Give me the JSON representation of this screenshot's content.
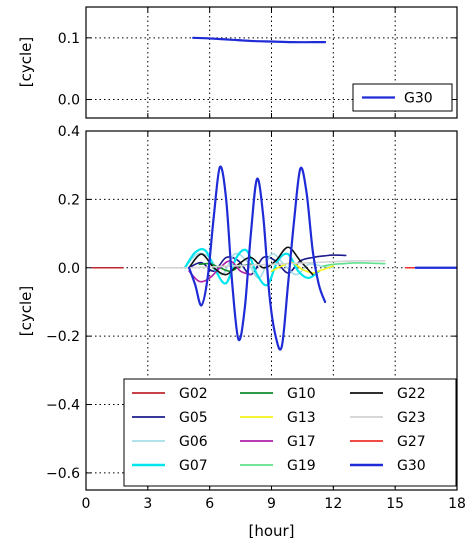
{
  "chart_data": [
    {
      "type": "line",
      "panel": "top",
      "ylabel": "[cycle]",
      "xlim": [
        0,
        18
      ],
      "ylim": [
        -0.03,
        0.15
      ],
      "yticks": [
        0.0,
        0.1
      ],
      "ytick_labels": [
        "0.0",
        "0.1"
      ],
      "grid": true,
      "legend_position": "bottom-right",
      "series": [
        {
          "name": "G30",
          "color": "#1f2bd6",
          "x": [
            5.2,
            6.0,
            7.0,
            8.0,
            9.0,
            10.0,
            11.0,
            11.6
          ],
          "y": [
            0.1,
            0.099,
            0.097,
            0.095,
            0.094,
            0.093,
            0.093,
            0.093
          ]
        }
      ]
    },
    {
      "type": "line",
      "panel": "bottom",
      "xlabel": "[hour]",
      "ylabel": "[cycle]",
      "xlim": [
        0,
        18
      ],
      "ylim": [
        -0.65,
        0.4
      ],
      "xticks": [
        0,
        3,
        6,
        9,
        12,
        15,
        18
      ],
      "xtick_labels": [
        "0",
        "3",
        "6",
        "9",
        "12",
        "15",
        "18"
      ],
      "yticks": [
        0.4,
        0.2,
        0.0,
        -0.2,
        -0.4,
        -0.6
      ],
      "ytick_labels": [
        "0.4",
        "0.2",
        "0.0",
        "−0.2",
        "−0.4",
        "−0.6"
      ],
      "grid": true,
      "legend_position": "lower-center",
      "legend_columns": 3,
      "series": [
        {
          "name": "G02",
          "color": "#c0282d",
          "x": [
            0.3,
            0.8,
            1.3,
            1.8
          ],
          "y": [
            0,
            0,
            0,
            0
          ]
        },
        {
          "name": "G05",
          "color": "#1c1c8c",
          "x": [
            5.0,
            5.6,
            6.2,
            6.8,
            7.4,
            8.0,
            8.6,
            9.2,
            9.8,
            10.4,
            11.0,
            11.6,
            12.0,
            12.6
          ],
          "y": [
            0.0,
            0.015,
            -0.01,
            0.03,
            0.02,
            -0.02,
            0.03,
            0.02,
            -0.015,
            0.02,
            0.03,
            0.035,
            0.037,
            0.036
          ]
        },
        {
          "name": "G06",
          "color": "#a8dde8",
          "x": [
            4.8,
            5.4,
            6.0,
            6.6,
            7.2,
            7.8,
            8.4,
            9.0,
            9.6,
            10.2,
            10.8,
            11.4,
            12.0
          ],
          "y": [
            0.0,
            0.04,
            0.03,
            -0.02,
            0.04,
            0.02,
            -0.03,
            0.04,
            0.01,
            -0.02,
            0.01,
            0.005,
            0.0
          ]
        },
        {
          "name": "G07",
          "color": "#00e5ee",
          "x": [
            4.8,
            5.3,
            5.8,
            6.3,
            6.8,
            7.3,
            7.8,
            8.3,
            8.8,
            9.3,
            9.8,
            10.3,
            10.8,
            11.3
          ],
          "y": [
            0.0,
            0.045,
            0.05,
            -0.01,
            -0.045,
            0.03,
            0.05,
            -0.02,
            -0.05,
            0.02,
            0.04,
            -0.01,
            -0.03,
            -0.01
          ]
        },
        {
          "name": "G10",
          "color": "#118c2e",
          "x": [
            5.5,
            6.0,
            6.5,
            7.0,
            7.5,
            8.0
          ],
          "y": [
            0.01,
            0.012,
            0.0,
            -0.01,
            0.005,
            0.01
          ]
        },
        {
          "name": "G13",
          "color": "#f2f215",
          "x": [
            9.0,
            9.5,
            10.0,
            10.5,
            11.0,
            11.5,
            12.0
          ],
          "y": [
            -0.01,
            0.005,
            0.015,
            -0.005,
            -0.015,
            -0.005,
            0.005
          ]
        },
        {
          "name": "G17",
          "color": "#b020a8",
          "x": [
            5.0,
            5.5,
            6.0,
            6.5,
            7.0,
            7.5,
            8.0
          ],
          "y": [
            -0.01,
            -0.04,
            -0.03,
            0.0,
            0.02,
            -0.01,
            -0.02
          ]
        },
        {
          "name": "G19",
          "color": "#60e08c",
          "x": [
            11.5,
            12.0,
            12.5,
            13.0,
            13.5,
            14.0,
            14.5
          ],
          "y": [
            0.005,
            0.01,
            0.012,
            0.014,
            0.014,
            0.013,
            0.012
          ]
        },
        {
          "name": "G22",
          "color": "#111111",
          "x": [
            5.0,
            5.6,
            6.2,
            6.8,
            7.4,
            8.0,
            8.6,
            9.2,
            9.8,
            10.4,
            11.0
          ],
          "y": [
            0.0,
            0.04,
            0.0,
            -0.02,
            0.01,
            0.03,
            0.0,
            0.02,
            0.06,
            0.02,
            -0.02
          ]
        },
        {
          "name": "G23",
          "color": "#d3d3d3",
          "x": [
            3.5,
            5.0,
            7.0,
            9.0,
            11.0,
            13.0,
            14.5
          ],
          "y": [
            0.0,
            0.0,
            0.005,
            0.01,
            0.015,
            0.02,
            0.02
          ]
        },
        {
          "name": "G27",
          "color": "#f0302a",
          "x": [
            15.5,
            16.0,
            16.5,
            17.0,
            17.5,
            17.8
          ],
          "y": [
            0,
            0,
            0,
            0,
            0,
            0
          ]
        },
        {
          "name": "G30",
          "color": "#1f2bd6",
          "x": [
            5.0,
            5.3,
            5.6,
            5.9,
            6.2,
            6.5,
            6.8,
            7.1,
            7.4,
            7.7,
            8.0,
            8.3,
            8.6,
            8.9,
            9.2,
            9.5,
            9.8,
            10.1,
            10.4,
            10.7,
            11.0,
            11.3,
            11.6
          ],
          "y": [
            0.0,
            -0.05,
            -0.11,
            -0.03,
            0.15,
            0.295,
            0.2,
            -0.05,
            -0.21,
            -0.12,
            0.1,
            0.26,
            0.15,
            -0.08,
            -0.2,
            -0.23,
            -0.05,
            0.14,
            0.29,
            0.22,
            0.05,
            -0.05,
            -0.1
          ]
        },
        {
          "name": "G30",
          "color": "#1f2bd6",
          "x": [
            16.0,
            16.5,
            17.0,
            17.5,
            18.0
          ],
          "y": [
            0,
            0,
            0,
            0,
            0
          ]
        }
      ]
    }
  ]
}
